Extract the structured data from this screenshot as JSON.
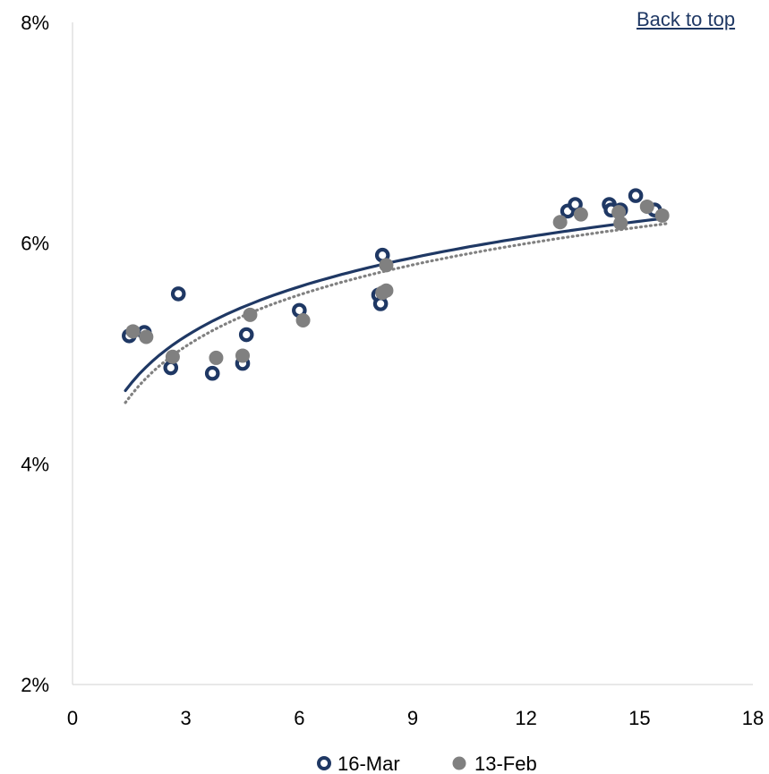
{
  "link": {
    "back_to_top": "Back to top"
  },
  "colors": {
    "march": "#1f3864",
    "feb": "#808080",
    "axis": "#d9d9d9"
  },
  "chart_data": {
    "type": "scatter",
    "title": "",
    "xlabel": "",
    "ylabel": "",
    "xlim": [
      0,
      18
    ],
    "ylim": [
      0.02,
      0.08
    ],
    "x_ticks": [
      0,
      3,
      6,
      9,
      12,
      15,
      18
    ],
    "x_tick_labels": [
      "0",
      "3",
      "6",
      "9",
      "12",
      "15",
      "18"
    ],
    "y_ticks": [
      0.02,
      0.04,
      0.06,
      0.08
    ],
    "y_tick_labels": [
      "2%",
      "4%",
      "6%",
      "8%"
    ],
    "grid": false,
    "legend_position": "bottom",
    "series": [
      {
        "name": "16-Mar",
        "marker": "hollow-circle",
        "trendline": "logarithmic-solid",
        "points": [
          [
            1.5,
            0.0516
          ],
          [
            1.9,
            0.0519
          ],
          [
            2.6,
            0.0487
          ],
          [
            2.8,
            0.0554
          ],
          [
            3.7,
            0.0482
          ],
          [
            4.5,
            0.0491
          ],
          [
            4.6,
            0.0517
          ],
          [
            6.0,
            0.0539
          ],
          [
            8.1,
            0.0553
          ],
          [
            8.15,
            0.0545
          ],
          [
            8.2,
            0.0589
          ],
          [
            13.1,
            0.0629
          ],
          [
            13.3,
            0.0635
          ],
          [
            14.2,
            0.0635
          ],
          [
            14.25,
            0.063
          ],
          [
            14.5,
            0.063
          ],
          [
            14.9,
            0.0643
          ],
          [
            15.4,
            0.063
          ]
        ]
      },
      {
        "name": "13-Feb",
        "marker": "filled-circle",
        "trendline": "logarithmic-dotted",
        "points": [
          [
            1.6,
            0.052
          ],
          [
            1.95,
            0.0515
          ],
          [
            2.65,
            0.0497
          ],
          [
            3.8,
            0.0496
          ],
          [
            4.5,
            0.0498
          ],
          [
            4.7,
            0.0535
          ],
          [
            6.1,
            0.053
          ],
          [
            8.2,
            0.0555
          ],
          [
            8.3,
            0.0557
          ],
          [
            8.3,
            0.058
          ],
          [
            12.9,
            0.0619
          ],
          [
            13.45,
            0.0626
          ],
          [
            14.45,
            0.0628
          ],
          [
            14.5,
            0.0618
          ],
          [
            15.2,
            0.0633
          ],
          [
            15.6,
            0.0625
          ]
        ]
      }
    ],
    "trendlines": [
      {
        "series": "16-Mar",
        "x_range": [
          1.4,
          15.7
        ],
        "a": 0.04446,
        "b": 0.006468
      },
      {
        "series": "13-Feb",
        "x_range": [
          1.4,
          15.7
        ],
        "a": 0.04329,
        "b": 0.006706
      }
    ]
  }
}
